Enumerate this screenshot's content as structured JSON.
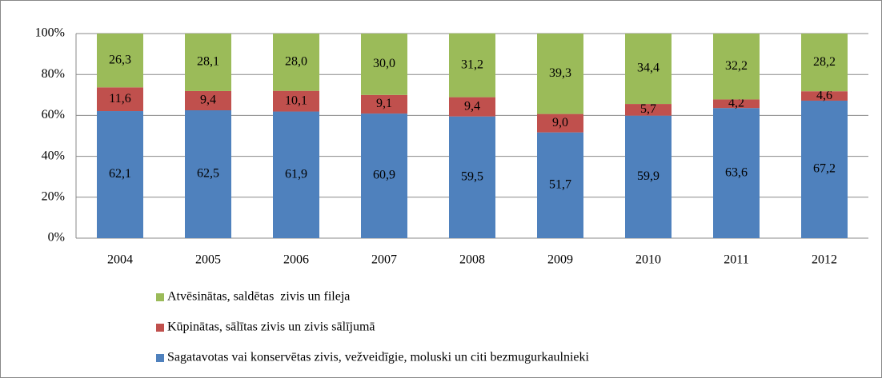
{
  "chart_data": {
    "type": "bar",
    "stacked": true,
    "categories": [
      "2004",
      "2005",
      "2006",
      "2007",
      "2008",
      "2009",
      "2010",
      "2011",
      "2012"
    ],
    "series": [
      {
        "name": "Sagatavotas vai konservētas zivis, vežveidīgie, moluski un citi bezmugurkaulnieki",
        "color": "#4f81bd",
        "values": [
          62.1,
          62.5,
          61.9,
          60.9,
          59.5,
          51.7,
          59.9,
          63.6,
          67.2
        ],
        "value_labels": [
          "62,1",
          "62,5",
          "61,9",
          "60,9",
          "59,5",
          "51,7",
          "59,9",
          "63,6",
          "67,2"
        ]
      },
      {
        "name": "Kūpinātas, sālītas zivis un zivis sālījumā",
        "color": "#c0504d",
        "values": [
          11.6,
          9.4,
          10.1,
          9.1,
          9.4,
          9.0,
          5.7,
          4.2,
          4.6
        ],
        "value_labels": [
          "11,6",
          "9,4",
          "10,1",
          "9,1",
          "9,4",
          "9,0",
          "5,7",
          "4,2",
          "4,6"
        ]
      },
      {
        "name": "Atvēsinātas, saldētas  zivis un fileja",
        "color": "#9bbb59",
        "values": [
          26.3,
          28.1,
          28.0,
          30.0,
          31.2,
          39.3,
          34.4,
          32.2,
          28.2
        ],
        "value_labels": [
          "26,3",
          "28,1",
          "28,0",
          "30,0",
          "31,2",
          "39,3",
          "34,4",
          "32,2",
          "28,2"
        ]
      }
    ],
    "ylim": [
      0,
      100
    ],
    "yticks": [
      {
        "value": 0,
        "label": "0%"
      },
      {
        "value": 20,
        "label": "20%"
      },
      {
        "value": 40,
        "label": "40%"
      },
      {
        "value": 60,
        "label": "60%"
      },
      {
        "value": 80,
        "label": "80%"
      },
      {
        "value": 100,
        "label": "100%"
      }
    ],
    "grid": true,
    "legend": "bottom"
  }
}
